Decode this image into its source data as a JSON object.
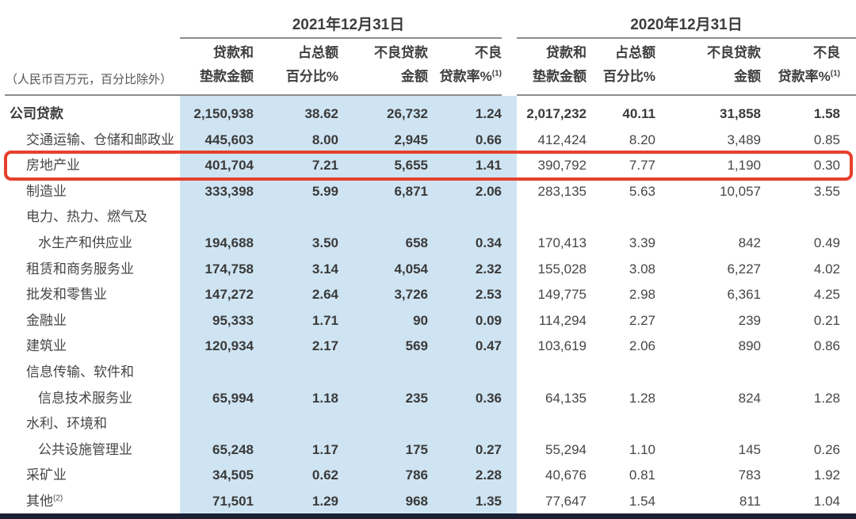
{
  "colors": {
    "band_blue": "#cfe4f2",
    "highlight_red": "#e6402c",
    "footer_bar": "#1b2033",
    "rule_gray": "#8d8d8d"
  },
  "header": {
    "unit_note": "（人民币百万元，百分比除外）",
    "periods": [
      {
        "label": "2021年12月31日"
      },
      {
        "label": "2020年12月31日"
      }
    ],
    "columns": [
      {
        "key": "loan-amount",
        "line1": "贷款和",
        "line2": "垫款金额",
        "sup": ""
      },
      {
        "key": "pct-of-total",
        "line1": "占总额",
        "line2": "百分比%",
        "sup": ""
      },
      {
        "key": "npl-amount",
        "line1": "不良贷款",
        "line2": "金额",
        "sup": ""
      },
      {
        "key": "npl-ratio",
        "line1": "不良",
        "line2": "贷款率%",
        "sup": "(1)"
      }
    ]
  },
  "rows": [
    {
      "label_lines": [
        "公司贷款"
      ],
      "sup": "",
      "bold": true,
      "highlighted": false,
      "v2021": [
        "2,150,938",
        "38.62",
        "26,732",
        "1.24"
      ],
      "v2020": [
        "2,017,232",
        "40.11",
        "31,858",
        "1.58"
      ]
    },
    {
      "label_lines": [
        "交通运输、仓储和邮政业"
      ],
      "sup": "",
      "bold": false,
      "highlighted": false,
      "v2021": [
        "445,603",
        "8.00",
        "2,945",
        "0.66"
      ],
      "v2020": [
        "412,424",
        "8.20",
        "3,489",
        "0.85"
      ]
    },
    {
      "label_lines": [
        "房地产业"
      ],
      "sup": "",
      "bold": false,
      "highlighted": true,
      "v2021": [
        "401,704",
        "7.21",
        "5,655",
        "1.41"
      ],
      "v2020": [
        "390,792",
        "7.77",
        "1,190",
        "0.30"
      ]
    },
    {
      "label_lines": [
        "制造业"
      ],
      "sup": "",
      "bold": false,
      "highlighted": false,
      "v2021": [
        "333,398",
        "5.99",
        "6,871",
        "2.06"
      ],
      "v2020": [
        "283,135",
        "5.63",
        "10,057",
        "3.55"
      ]
    },
    {
      "label_lines": [
        "电力、热力、燃气及",
        "水生产和供应业"
      ],
      "sup": "",
      "bold": false,
      "highlighted": false,
      "v2021": [
        "194,688",
        "3.50",
        "658",
        "0.34"
      ],
      "v2020": [
        "170,413",
        "3.39",
        "842",
        "0.49"
      ]
    },
    {
      "label_lines": [
        "租赁和商务服务业"
      ],
      "sup": "",
      "bold": false,
      "highlighted": false,
      "v2021": [
        "174,758",
        "3.14",
        "4,054",
        "2.32"
      ],
      "v2020": [
        "155,028",
        "3.08",
        "6,227",
        "4.02"
      ]
    },
    {
      "label_lines": [
        "批发和零售业"
      ],
      "sup": "",
      "bold": false,
      "highlighted": false,
      "v2021": [
        "147,272",
        "2.64",
        "3,726",
        "2.53"
      ],
      "v2020": [
        "149,775",
        "2.98",
        "6,361",
        "4.25"
      ]
    },
    {
      "label_lines": [
        "金融业"
      ],
      "sup": "",
      "bold": false,
      "highlighted": false,
      "v2021": [
        "95,333",
        "1.71",
        "90",
        "0.09"
      ],
      "v2020": [
        "114,294",
        "2.27",
        "239",
        "0.21"
      ]
    },
    {
      "label_lines": [
        "建筑业"
      ],
      "sup": "",
      "bold": false,
      "highlighted": false,
      "v2021": [
        "120,934",
        "2.17",
        "569",
        "0.47"
      ],
      "v2020": [
        "103,619",
        "2.06",
        "890",
        "0.86"
      ]
    },
    {
      "label_lines": [
        "信息传输、软件和",
        "信息技术服务业"
      ],
      "sup": "",
      "bold": false,
      "highlighted": false,
      "v2021": [
        "65,994",
        "1.18",
        "235",
        "0.36"
      ],
      "v2020": [
        "64,135",
        "1.28",
        "824",
        "1.28"
      ]
    },
    {
      "label_lines": [
        "水利、环境和",
        "公共设施管理业"
      ],
      "sup": "",
      "bold": false,
      "highlighted": false,
      "v2021": [
        "65,248",
        "1.17",
        "175",
        "0.27"
      ],
      "v2020": [
        "55,294",
        "1.10",
        "145",
        "0.26"
      ]
    },
    {
      "label_lines": [
        "采矿业"
      ],
      "sup": "",
      "bold": false,
      "highlighted": false,
      "v2021": [
        "34,505",
        "0.62",
        "786",
        "2.28"
      ],
      "v2020": [
        "40,676",
        "0.81",
        "783",
        "1.92"
      ]
    },
    {
      "label_lines": [
        "其他"
      ],
      "sup": "(2)",
      "bold": false,
      "highlighted": false,
      "v2021": [
        "71,501",
        "1.29",
        "968",
        "1.35"
      ],
      "v2020": [
        "77,647",
        "1.54",
        "811",
        "1.04"
      ]
    }
  ],
  "annotation": {
    "type": "highlight-box",
    "target_row": "房地产业",
    "color": "#e6402c"
  }
}
